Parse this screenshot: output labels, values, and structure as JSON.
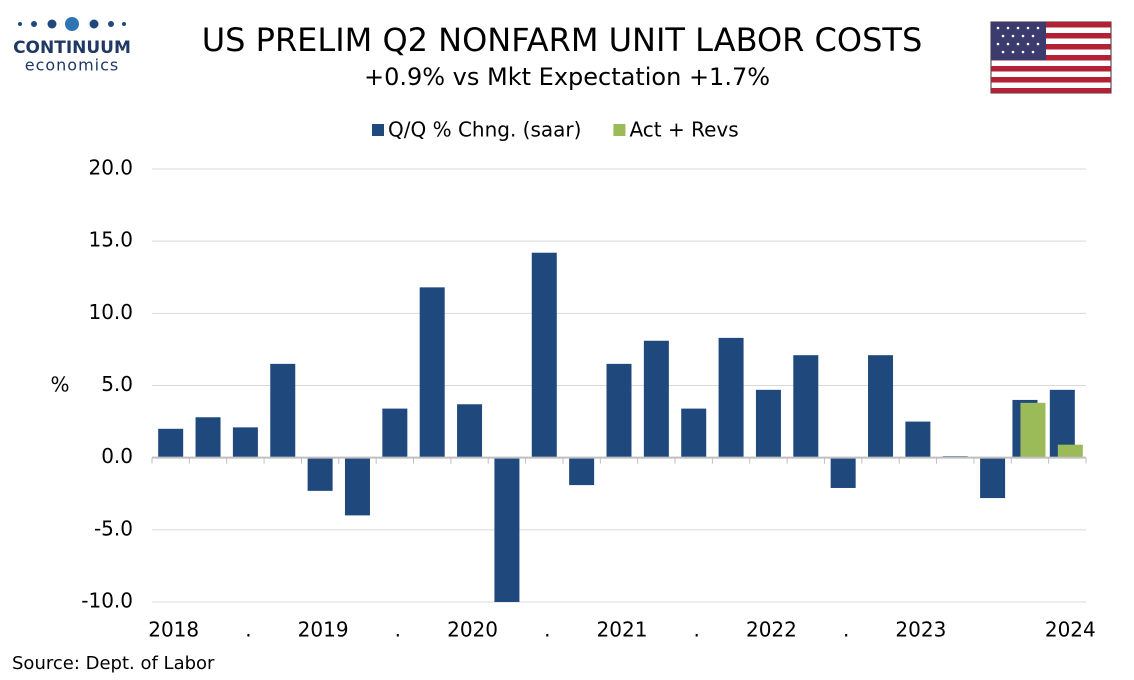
{
  "chart_data": {
    "type": "bar",
    "title": "US PRELIM Q2  NONFARM UNIT LABOR COSTS",
    "subtitle": "+0.9% vs Mkt Expectation +1.7%",
    "logo": [
      "CONTINUUM",
      "economics"
    ],
    "y_label": "%",
    "source": "Source: Dept. of Labor",
    "categories": [
      "2018",
      null,
      ".",
      null,
      "2019",
      null,
      ".",
      null,
      "2020",
      null,
      ".",
      null,
      "2021",
      null,
      ".",
      null,
      "2022",
      null,
      ".",
      null,
      "2023",
      null,
      null,
      null,
      "2024"
    ],
    "series": [
      {
        "name": "Q/Q % Chng. (saar)",
        "color": "#1f497d",
        "values": [
          2.0,
          2.8,
          2.1,
          6.5,
          -2.3,
          -4.0,
          3.4,
          11.8,
          3.7,
          -10.0,
          14.2,
          -1.9,
          6.5,
          8.1,
          3.4,
          8.3,
          4.7,
          7.1,
          -2.1,
          7.1,
          2.5,
          0.1,
          -2.8,
          4.0,
          4.7
        ]
      },
      {
        "name": "Act + Revs",
        "color": "#9bbb59",
        "values": [
          null,
          null,
          null,
          null,
          null,
          null,
          null,
          null,
          null,
          null,
          null,
          null,
          null,
          null,
          null,
          null,
          null,
          null,
          null,
          null,
          null,
          null,
          null,
          3.8,
          0.9
        ]
      }
    ],
    "ylim": [
      -10,
      20
    ],
    "yticks": [
      {
        "value": 20,
        "label": "20.0"
      },
      {
        "value": 15,
        "label": "15.0"
      },
      {
        "value": 10,
        "label": "10.0"
      },
      {
        "value": 5,
        "label": "5.0"
      },
      {
        "value": 0,
        "label": "0.0"
      },
      {
        "value": -5,
        "label": "-5.0"
      },
      {
        "value": -10,
        "label": "-10.0"
      }
    ],
    "grid": true
  }
}
